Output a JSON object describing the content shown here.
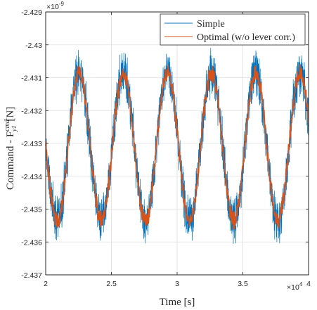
{
  "chart_data": {
    "type": "line",
    "xlabel": "Time [s]",
    "ylabel": "Command - F",
    "ylabel_sup": "cmd",
    "ylabel_sub": "y1",
    "ylabel_unit": "[N]",
    "x_multiplier": "×10",
    "x_multiplier_exp": "4",
    "y_multiplier": "×10",
    "y_multiplier_exp": "-9",
    "xlim": [
      20000,
      40000
    ],
    "ylim": [
      -2.437e-09,
      -2.429e-09
    ],
    "x_ticks": [
      20000,
      25000,
      30000,
      35000,
      40000
    ],
    "x_tick_labels": [
      "2",
      "2.5",
      "3",
      "3.5",
      "4"
    ],
    "y_ticks": [
      -2.429e-09,
      -2.43e-09,
      -2.431e-09,
      -2.432e-09,
      -2.433e-09,
      -2.434e-09,
      -2.435e-09,
      -2.436e-09,
      -2.437e-09
    ],
    "y_tick_labels": [
      "-2.429",
      "-2.43",
      "-2.431",
      "-2.432",
      "-2.433",
      "-2.434",
      "-2.435",
      "-2.436",
      "-2.437"
    ],
    "grid": true,
    "legend_position": "top-right",
    "series": [
      {
        "name": "Simple",
        "color": "#0072BD",
        "signal": {
          "mean": -2.4331e-09,
          "amplitude": 2.25e-12,
          "period": 3360,
          "first_peak_time": 22550,
          "noise_amplitude": 6e-13
        }
      },
      {
        "name": "Optimal (w/o lever corr.)",
        "color": "#D95319",
        "signal": {
          "mean": -2.4331e-09,
          "amplitude": 2.25e-12,
          "period": 3360,
          "first_peak_time": 22550,
          "noise_amplitude": 2.2e-13
        }
      }
    ]
  }
}
